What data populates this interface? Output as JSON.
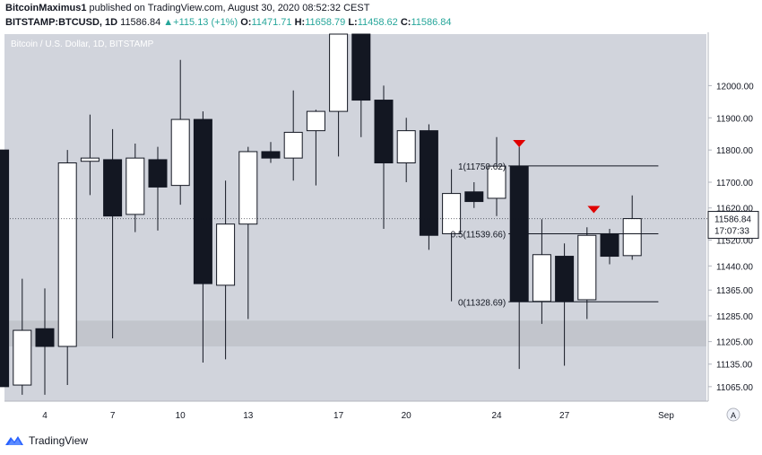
{
  "header": {
    "author": "BitcoinMaximus1",
    "published_text": "published on TradingView.com, August 30, 2020 08:52:32 CEST",
    "symbol": "BITSTAMP:BTCUSD, 1D",
    "last": "11586.84",
    "change": "+115.13 (+1%)",
    "o_label": "O:",
    "o_value": "11471.71",
    "h_label": "H:",
    "h_value": "11658.79",
    "l_label": "L:",
    "l_value": "11458.62",
    "c_label": "C:",
    "c_value": "11586.84"
  },
  "footer": {
    "brand": "TradingView"
  },
  "colors": {
    "plot_bg": "#d1d4dc",
    "zone": "#c2c5cc",
    "bear": "#131722",
    "bull": "#ffffff",
    "arrow": "#e00000",
    "axis_bg": "#ffffff",
    "tv_blue": "#2962ff"
  },
  "chart_data": {
    "type": "candlestick",
    "title": "Bitcoin / U.S. Dollar, 1D, BITSTAMP",
    "ylim": [
      11020,
      12160
    ],
    "yticks": [
      12000,
      11900,
      11800,
      11700,
      11620,
      11520,
      11440,
      11365,
      11285,
      11205,
      11135,
      11065
    ],
    "ytick_labels": [
      "12000.00",
      "11900.00",
      "11800.00",
      "11700.00",
      "11620.00",
      "11520.00",
      "11440.00",
      "11365.00",
      "11285.00",
      "11205.00",
      "11135.00",
      "11065.00"
    ],
    "x_ticks": [
      4,
      7,
      10,
      13,
      17,
      20,
      24,
      27,
      31.5
    ],
    "x_tick_labels": [
      "4",
      "7",
      "10",
      "13",
      "17",
      "20",
      "24",
      "27",
      "Sep"
    ],
    "price_label": "11586.84",
    "countdown_label": "17:07:33",
    "axis_icon": "A",
    "candles": [
      {
        "day": 2,
        "o": 11800,
        "h": 11800,
        "l": 11065,
        "c": 11065
      },
      {
        "day": 3,
        "o": 11070,
        "h": 11400,
        "l": 11040,
        "c": 11240
      },
      {
        "day": 4,
        "o": 11245,
        "h": 11370,
        "l": 11040,
        "c": 11190
      },
      {
        "day": 5,
        "o": 11190,
        "h": 11800,
        "l": 11070,
        "c": 11760
      },
      {
        "day": 6,
        "o": 11765,
        "h": 11910,
        "l": 11660,
        "c": 11775
      },
      {
        "day": 7,
        "o": 11770,
        "h": 11865,
        "l": 11215,
        "c": 11595
      },
      {
        "day": 8,
        "o": 11600,
        "h": 11820,
        "l": 11545,
        "c": 11775
      },
      {
        "day": 9,
        "o": 11770,
        "h": 11810,
        "l": 11550,
        "c": 11685
      },
      {
        "day": 10,
        "o": 11690,
        "h": 12080,
        "l": 11630,
        "c": 11895
      },
      {
        "day": 11,
        "o": 11895,
        "h": 11920,
        "l": 11140,
        "c": 11385
      },
      {
        "day": 12,
        "o": 11380,
        "h": 11705,
        "l": 11150,
        "c": 11570
      },
      {
        "day": 13,
        "o": 11570,
        "h": 11810,
        "l": 11275,
        "c": 11795
      },
      {
        "day": 14,
        "o": 11795,
        "h": 11825,
        "l": 11760,
        "c": 11775
      },
      {
        "day": 15,
        "o": 11775,
        "h": 11985,
        "l": 11705,
        "c": 11855
      },
      {
        "day": 16,
        "o": 11860,
        "h": 11925,
        "l": 11690,
        "c": 11920
      },
      {
        "day": 17,
        "o": 11920,
        "h": 12160,
        "l": 11780,
        "c": 12160
      },
      {
        "day": 18,
        "o": 12160,
        "h": 12160,
        "l": 11840,
        "c": 11955
      },
      {
        "day": 19,
        "o": 11955,
        "h": 12000,
        "l": 11555,
        "c": 11760
      },
      {
        "day": 20,
        "o": 11760,
        "h": 11900,
        "l": 11700,
        "c": 11860
      },
      {
        "day": 21,
        "o": 11860,
        "h": 11880,
        "l": 11490,
        "c": 11535
      },
      {
        "day": 22,
        "o": 11540,
        "h": 11740,
        "l": 11330,
        "c": 11665
      },
      {
        "day": 23,
        "o": 11670,
        "h": 11700,
        "l": 11620,
        "c": 11640
      },
      {
        "day": 24,
        "o": 11650,
        "h": 11840,
        "l": 11595,
        "c": 11750
      },
      {
        "day": 25,
        "o": 11750,
        "h": 11810,
        "l": 11120,
        "c": 11330
      },
      {
        "day": 26,
        "o": 11330,
        "h": 11585,
        "l": 11260,
        "c": 11475
      },
      {
        "day": 27,
        "o": 11470,
        "h": 11510,
        "l": 11130,
        "c": 11330
      },
      {
        "day": 28,
        "o": 11335,
        "h": 11560,
        "l": 11275,
        "c": 11535
      },
      {
        "day": 29,
        "o": 11540,
        "h": 11555,
        "l": 11445,
        "c": 11470
      },
      {
        "day": 30,
        "o": 11472,
        "h": 11659,
        "l": 11459,
        "c": 11587
      }
    ],
    "support_zone": [
      11190,
      11270
    ],
    "fib": {
      "day_start": 25,
      "day_end": 31,
      "levels": [
        {
          "label": "1(11750.62)",
          "value": 11750.62
        },
        {
          "label": "0.5(11539.66)",
          "value": 11539.66
        },
        {
          "label": "0(11328.69)",
          "value": 11328.69
        }
      ]
    },
    "arrows": [
      {
        "day": 25,
        "price": 11820
      },
      {
        "day": 28.3,
        "price": 11615
      }
    ]
  }
}
